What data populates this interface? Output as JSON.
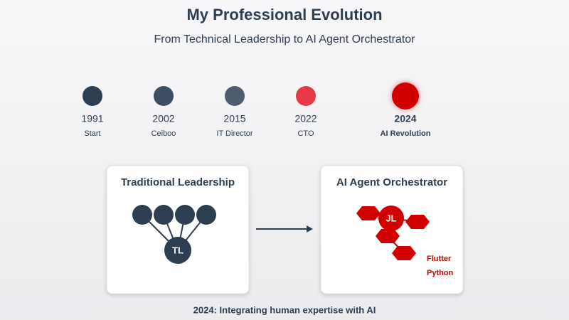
{
  "header": {
    "title": "My Professional Evolution",
    "subtitle": "From Technical Leadership to AI Agent Orchestrator"
  },
  "timeline": [
    {
      "year": "1991",
      "label": "Start"
    },
    {
      "year": "2002",
      "label": "Ceiboo"
    },
    {
      "year": "2015",
      "label": "IT Director"
    },
    {
      "year": "2022",
      "label": "CTO"
    },
    {
      "year": "2024",
      "label": "AI Revolution"
    }
  ],
  "cards": [
    {
      "title": "Traditional Leadership",
      "node": "TL"
    },
    {
      "title": "AI Agent Orchestrator",
      "node": "JL",
      "tags": [
        "Flutter",
        "Python"
      ]
    }
  ],
  "footer": "2024: Integrating human expertise with AI"
}
